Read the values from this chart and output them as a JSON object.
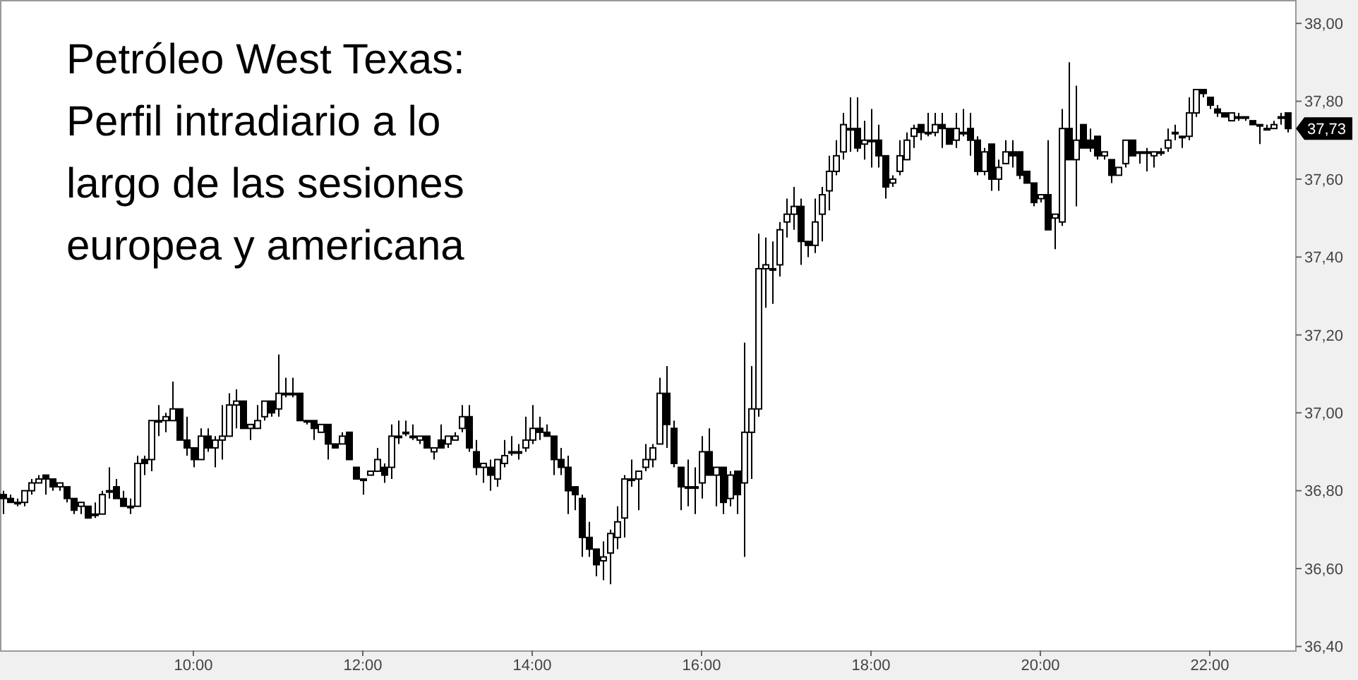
{
  "chart_data": {
    "type": "candlestick",
    "title": "Petróleo West Texas: Perfil intradiario a lo largo de las sesiones europea y americana",
    "x": [
      7.75,
      7.833,
      7.917,
      8,
      8.083,
      8.167,
      8.25,
      8.333,
      8.417,
      8.5,
      8.583,
      8.667,
      8.75,
      8.833,
      8.917,
      9,
      9.083,
      9.167,
      9.25,
      9.333,
      9.417,
      9.5,
      9.583,
      9.667,
      9.75,
      9.833,
      9.917,
      10,
      10.083,
      10.167,
      10.25,
      10.333,
      10.417,
      10.5,
      10.583,
      10.667,
      10.75,
      10.833,
      10.917,
      11,
      11.083,
      11.167,
      11.25,
      11.333,
      11.417,
      11.5,
      11.583,
      11.667,
      11.75,
      11.833,
      11.917,
      12,
      12.083,
      12.167,
      12.25,
      12.333,
      12.417,
      12.5,
      12.583,
      12.667,
      12.75,
      12.833,
      12.917,
      13,
      13.083,
      13.167,
      13.25,
      13.333,
      13.417,
      13.5,
      13.583,
      13.667,
      13.75,
      13.833,
      13.917,
      14,
      14.083,
      14.167,
      14.25,
      14.333,
      14.417,
      14.5,
      14.583,
      14.667,
      14.75,
      14.833,
      14.917,
      15,
      15.083,
      15.167,
      15.25,
      15.333,
      15.417,
      15.5,
      15.583,
      15.667,
      15.75,
      15.833,
      15.917,
      16,
      16.083,
      16.167,
      16.25,
      16.333,
      16.417,
      16.5,
      16.583,
      16.667,
      16.75,
      16.833,
      16.917,
      17,
      17.083,
      17.167,
      17.25,
      17.333,
      17.417,
      17.5,
      17.583,
      17.667,
      17.75,
      17.833,
      17.917,
      18,
      18.083,
      18.167,
      18.25,
      18.333,
      18.417,
      18.5,
      18.583,
      18.667,
      18.75,
      18.833,
      18.917,
      19,
      19.083,
      19.167,
      19.25,
      19.333,
      19.417,
      19.5,
      19.583,
      19.667,
      19.75,
      19.833,
      19.917,
      20,
      20.083,
      20.167,
      20.25,
      20.333,
      20.417,
      20.5,
      20.583,
      20.667,
      20.75,
      20.833,
      20.917,
      21,
      21.083,
      21.167,
      21.25,
      21.333,
      21.417,
      21.5,
      21.583,
      21.667,
      21.75,
      21.833,
      21.917,
      22,
      22.083,
      22.167,
      22.25,
      22.333,
      22.417,
      22.5,
      22.583,
      22.667,
      22.75,
      22.833,
      22.917
    ],
    "ohlc": [
      [
        36.79,
        36.8,
        36.74,
        36.78
      ],
      [
        36.78,
        36.79,
        36.77,
        36.77
      ],
      [
        36.77,
        36.78,
        36.76,
        36.77
      ],
      [
        36.77,
        36.8,
        36.76,
        36.8
      ],
      [
        36.8,
        36.83,
        36.79,
        36.82
      ],
      [
        36.82,
        36.84,
        36.82,
        36.83
      ],
      [
        36.84,
        36.84,
        36.79,
        36.83
      ],
      [
        36.83,
        36.83,
        36.8,
        36.81
      ],
      [
        36.81,
        36.82,
        36.8,
        36.82
      ],
      [
        36.81,
        36.81,
        36.77,
        36.78
      ],
      [
        36.78,
        36.78,
        36.74,
        36.75
      ],
      [
        36.76,
        36.77,
        36.74,
        36.77
      ],
      [
        36.76,
        36.76,
        36.73,
        36.73
      ],
      [
        36.74,
        36.77,
        36.73,
        36.74
      ],
      [
        36.74,
        36.8,
        36.74,
        36.79
      ],
      [
        36.8,
        36.86,
        36.78,
        36.8
      ],
      [
        36.81,
        36.83,
        36.78,
        36.78
      ],
      [
        36.78,
        36.8,
        36.76,
        36.76
      ],
      [
        36.76,
        36.78,
        36.74,
        36.76
      ],
      [
        36.76,
        36.89,
        36.76,
        36.87
      ],
      [
        36.88,
        36.89,
        36.84,
        36.87
      ],
      [
        36.88,
        36.98,
        36.85,
        36.98
      ],
      [
        36.98,
        37.02,
        36.94,
        36.98
      ],
      [
        36.98,
        37.0,
        36.95,
        36.99
      ],
      [
        36.98,
        37.08,
        36.98,
        37.01
      ],
      [
        37.01,
        37.01,
        36.93,
        36.93
      ],
      [
        36.93,
        36.99,
        36.89,
        36.91
      ],
      [
        36.91,
        36.91,
        36.86,
        36.88
      ],
      [
        36.88,
        36.96,
        36.88,
        36.94
      ],
      [
        36.94,
        36.96,
        36.9,
        36.91
      ],
      [
        36.91,
        36.94,
        36.86,
        36.93
      ],
      [
        36.93,
        37.02,
        36.88,
        36.94
      ],
      [
        36.94,
        37.05,
        36.94,
        37.02
      ],
      [
        37.02,
        37.06,
        36.96,
        37.03
      ],
      [
        37.03,
        37.03,
        36.96,
        36.96
      ],
      [
        36.96,
        36.97,
        36.93,
        36.97
      ],
      [
        36.96,
        37.02,
        36.96,
        36.98
      ],
      [
        36.99,
        37.03,
        36.98,
        37.03
      ],
      [
        37.03,
        37.03,
        36.99,
        37.0
      ],
      [
        37.01,
        37.15,
        36.99,
        37.05
      ],
      [
        37.05,
        37.09,
        37.04,
        37.05
      ],
      [
        37.05,
        37.09,
        37.04,
        37.05
      ],
      [
        37.05,
        37.05,
        36.98,
        36.98
      ],
      [
        36.98,
        36.98,
        36.97,
        36.98
      ],
      [
        36.98,
        36.98,
        36.93,
        36.96
      ],
      [
        36.95,
        36.97,
        36.95,
        36.97
      ],
      [
        36.97,
        36.97,
        36.88,
        36.92
      ],
      [
        36.92,
        36.92,
        36.91,
        36.91
      ],
      [
        36.92,
        36.95,
        36.92,
        36.94
      ],
      [
        36.95,
        36.95,
        36.88,
        36.88
      ],
      [
        36.86,
        36.86,
        36.83,
        36.83
      ],
      [
        36.83,
        36.83,
        36.79,
        36.83
      ],
      [
        36.84,
        36.85,
        36.84,
        36.85
      ],
      [
        36.85,
        36.91,
        36.85,
        36.88
      ],
      [
        36.86,
        36.87,
        36.82,
        36.84
      ],
      [
        36.86,
        36.97,
        36.83,
        36.94
      ],
      [
        36.94,
        36.98,
        36.92,
        36.94
      ],
      [
        36.95,
        36.98,
        36.94,
        36.95
      ],
      [
        36.94,
        36.97,
        36.93,
        36.94
      ],
      [
        36.93,
        36.94,
        36.92,
        36.94
      ],
      [
        36.94,
        36.94,
        36.91,
        36.91
      ],
      [
        36.9,
        36.91,
        36.88,
        36.91
      ],
      [
        36.93,
        36.97,
        36.91,
        36.91
      ],
      [
        36.92,
        36.94,
        36.91,
        36.94
      ],
      [
        36.93,
        36.95,
        36.93,
        36.94
      ],
      [
        36.96,
        37.02,
        36.95,
        36.99
      ],
      [
        36.99,
        37.02,
        36.9,
        36.91
      ],
      [
        36.9,
        36.93,
        36.84,
        36.86
      ],
      [
        36.86,
        36.87,
        36.82,
        36.87
      ],
      [
        36.86,
        36.88,
        36.8,
        36.84
      ],
      [
        36.83,
        36.88,
        36.81,
        36.88
      ],
      [
        36.87,
        36.93,
        36.86,
        36.89
      ],
      [
        36.9,
        36.94,
        36.89,
        36.9
      ],
      [
        36.9,
        36.92,
        36.88,
        36.9
      ],
      [
        36.91,
        36.99,
        36.9,
        36.93
      ],
      [
        36.93,
        37.02,
        36.92,
        36.96
      ],
      [
        36.96,
        36.99,
        36.93,
        36.95
      ],
      [
        36.95,
        36.97,
        36.94,
        36.94
      ],
      [
        36.94,
        36.94,
        36.84,
        36.88
      ],
      [
        36.88,
        36.91,
        36.84,
        36.86
      ],
      [
        36.86,
        36.89,
        36.74,
        36.8
      ],
      [
        36.81,
        36.81,
        36.75,
        36.79
      ],
      [
        36.78,
        36.79,
        36.63,
        36.68
      ],
      [
        36.68,
        36.72,
        36.63,
        36.65
      ],
      [
        36.65,
        36.65,
        36.58,
        36.61
      ],
      [
        36.62,
        36.67,
        36.57,
        36.63
      ],
      [
        36.64,
        36.7,
        36.56,
        36.69
      ],
      [
        36.68,
        36.76,
        36.65,
        36.72
      ],
      [
        36.73,
        36.84,
        36.68,
        36.83
      ],
      [
        36.83,
        36.88,
        36.81,
        36.83
      ],
      [
        36.83,
        36.85,
        36.75,
        36.85
      ],
      [
        36.86,
        36.92,
        36.85,
        36.88
      ],
      [
        36.88,
        36.92,
        36.86,
        36.91
      ],
      [
        36.92,
        37.09,
        36.92,
        37.05
      ],
      [
        37.05,
        37.12,
        36.91,
        36.97
      ],
      [
        36.96,
        36.98,
        36.86,
        36.87
      ],
      [
        36.86,
        36.86,
        36.75,
        36.81
      ],
      [
        36.81,
        36.88,
        36.76,
        36.81
      ],
      [
        36.81,
        36.86,
        36.74,
        36.81
      ],
      [
        36.82,
        36.94,
        36.78,
        36.9
      ],
      [
        36.9,
        36.96,
        36.84,
        36.84
      ],
      [
        36.84,
        36.86,
        36.76,
        36.86
      ],
      [
        36.86,
        36.86,
        36.74,
        36.77
      ],
      [
        36.78,
        36.85,
        36.76,
        36.84
      ],
      [
        36.85,
        36.85,
        36.74,
        36.79
      ],
      [
        36.82,
        37.18,
        36.63,
        36.95
      ],
      [
        36.95,
        37.12,
        36.83,
        37.01
      ],
      [
        37.01,
        37.46,
        36.99,
        37.37
      ],
      [
        37.37,
        37.45,
        37.27,
        37.38
      ],
      [
        37.37,
        37.44,
        37.28,
        37.37
      ],
      [
        37.38,
        37.49,
        37.35,
        37.47
      ],
      [
        37.49,
        37.55,
        37.45,
        37.51
      ],
      [
        37.51,
        37.58,
        37.47,
        37.53
      ],
      [
        37.53,
        37.55,
        37.38,
        37.44
      ],
      [
        37.44,
        37.44,
        37.4,
        37.43
      ],
      [
        37.43,
        37.55,
        37.41,
        37.49
      ],
      [
        37.51,
        37.58,
        37.44,
        37.56
      ],
      [
        37.57,
        37.66,
        37.52,
        37.62
      ],
      [
        37.62,
        37.7,
        37.61,
        37.66
      ],
      [
        37.67,
        37.77,
        37.65,
        37.74
      ],
      [
        37.73,
        37.81,
        37.67,
        37.73
      ],
      [
        37.73,
        37.81,
        37.67,
        37.68
      ],
      [
        37.69,
        37.75,
        37.65,
        37.7
      ],
      [
        37.7,
        37.78,
        37.63,
        37.7
      ],
      [
        37.7,
        37.74,
        37.63,
        37.66
      ],
      [
        37.66,
        37.66,
        37.55,
        37.58
      ],
      [
        37.59,
        37.61,
        37.58,
        37.6
      ],
      [
        37.62,
        37.7,
        37.61,
        37.66
      ],
      [
        37.65,
        37.72,
        37.65,
        37.7
      ],
      [
        37.71,
        37.74,
        37.68,
        37.73
      ],
      [
        37.74,
        37.74,
        37.7,
        37.72
      ],
      [
        37.72,
        37.77,
        37.71,
        37.72
      ],
      [
        37.72,
        37.77,
        37.71,
        37.74
      ],
      [
        37.74,
        37.77,
        37.68,
        37.73
      ],
      [
        37.73,
        37.73,
        37.69,
        37.69
      ],
      [
        37.7,
        37.77,
        37.68,
        37.73
      ],
      [
        37.72,
        37.78,
        37.71,
        37.72
      ],
      [
        37.73,
        37.77,
        37.66,
        37.7
      ],
      [
        37.7,
        37.71,
        37.61,
        37.62
      ],
      [
        37.62,
        37.68,
        37.61,
        37.67
      ],
      [
        37.69,
        37.69,
        37.57,
        37.6
      ],
      [
        37.6,
        37.65,
        37.57,
        37.63
      ],
      [
        37.64,
        37.7,
        37.64,
        37.67
      ],
      [
        37.67,
        37.7,
        37.63,
        37.66
      ],
      [
        37.67,
        37.67,
        37.6,
        37.61
      ],
      [
        37.62,
        37.62,
        37.59,
        37.59
      ],
      [
        37.59,
        37.59,
        37.53,
        37.54
      ],
      [
        37.55,
        37.56,
        37.54,
        37.56
      ],
      [
        37.56,
        37.7,
        37.47,
        37.47
      ],
      [
        37.5,
        37.51,
        37.42,
        37.51
      ],
      [
        37.49,
        37.78,
        37.48,
        37.73
      ],
      [
        37.73,
        37.9,
        37.65,
        37.65
      ],
      [
        37.65,
        37.84,
        37.53,
        37.7
      ],
      [
        37.74,
        37.74,
        37.68,
        37.68
      ],
      [
        37.7,
        37.73,
        37.67,
        37.68
      ],
      [
        37.71,
        37.71,
        37.65,
        37.66
      ],
      [
        37.66,
        37.67,
        37.65,
        37.67
      ],
      [
        37.65,
        37.65,
        37.59,
        37.61
      ],
      [
        37.61,
        37.63,
        37.61,
        37.63
      ],
      [
        37.64,
        37.7,
        37.63,
        37.7
      ],
      [
        37.7,
        37.7,
        37.66,
        37.66
      ],
      [
        37.67,
        37.67,
        37.64,
        37.67
      ],
      [
        37.67,
        37.68,
        37.62,
        37.67
      ],
      [
        37.66,
        37.67,
        37.63,
        37.67
      ],
      [
        37.67,
        37.68,
        37.66,
        37.67
      ],
      [
        37.68,
        37.73,
        37.67,
        37.7
      ],
      [
        37.72,
        37.74,
        37.7,
        37.72
      ],
      [
        37.71,
        37.71,
        37.68,
        37.71
      ],
      [
        37.71,
        37.81,
        37.7,
        37.77
      ],
      [
        37.77,
        37.83,
        37.76,
        37.83
      ],
      [
        37.83,
        37.83,
        37.81,
        37.82
      ],
      [
        37.81,
        37.81,
        37.78,
        37.79
      ],
      [
        37.78,
        37.79,
        37.76,
        37.77
      ],
      [
        37.77,
        37.77,
        37.76,
        37.76
      ],
      [
        37.75,
        37.77,
        37.75,
        37.77
      ],
      [
        37.76,
        37.77,
        37.75,
        37.76
      ],
      [
        37.76,
        37.76,
        37.75,
        37.76
      ],
      [
        37.75,
        37.75,
        37.74,
        37.74
      ],
      [
        37.74,
        37.74,
        37.69,
        37.74
      ],
      [
        37.73,
        37.74,
        37.73,
        37.73
      ],
      [
        37.73,
        37.75,
        37.73,
        37.74
      ],
      [
        37.76,
        37.77,
        37.74,
        37.76
      ],
      [
        37.77,
        37.77,
        37.72,
        37.73
      ]
    ],
    "xlim": [
      7.717,
      23.017
    ],
    "ylim": [
      36.39,
      38.06
    ],
    "xticks": [
      {
        "value": 10,
        "label": "10:00"
      },
      {
        "value": 12,
        "label": "12:00"
      },
      {
        "value": 14,
        "label": "14:00"
      },
      {
        "value": 16,
        "label": "16:00"
      },
      {
        "value": 18,
        "label": "18:00"
      },
      {
        "value": 20,
        "label": "20:00"
      },
      {
        "value": 22,
        "label": "22:00"
      }
    ],
    "yticks": [
      {
        "value": 36.4,
        "label": "36,40"
      },
      {
        "value": 36.6,
        "label": "36,60"
      },
      {
        "value": 36.8,
        "label": "36,80"
      },
      {
        "value": 37,
        "label": "37,00"
      },
      {
        "value": 37.2,
        "label": "37,20"
      },
      {
        "value": 37.4,
        "label": "37,40"
      },
      {
        "value": 37.6,
        "label": "37,60"
      },
      {
        "value": 37.8,
        "label": "37,80"
      },
      {
        "value": 38,
        "label": "38,00"
      }
    ],
    "annotations": [
      {
        "text": "37,73",
        "y": 37.73
      }
    ]
  }
}
